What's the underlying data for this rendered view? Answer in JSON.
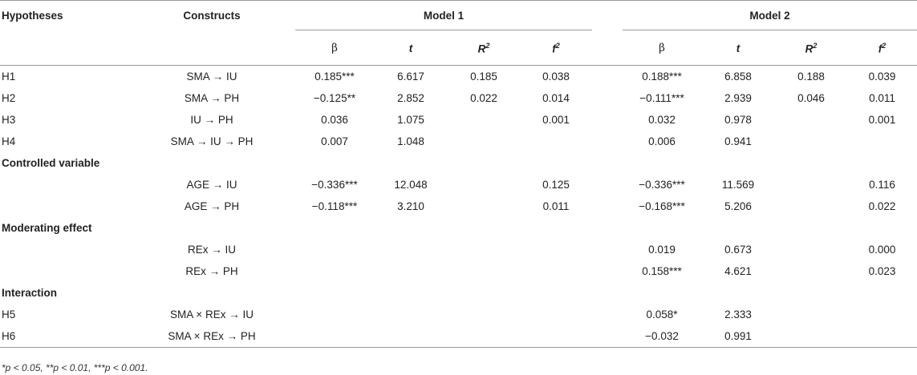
{
  "headers": {
    "hypotheses": "Hypotheses",
    "constructs": "Constructs",
    "model1": "Model 1",
    "model2": "Model 2",
    "beta": "β",
    "t": "t",
    "r2": "R2",
    "f2": "f2"
  },
  "rows": [
    {
      "type": "data",
      "h": "H1",
      "c": "SMA → IU",
      "b1": "0.185***",
      "t1": "6.617",
      "r1": "0.185",
      "f1": "0.038",
      "b2": "0.188***",
      "t2": "6.858",
      "r2": "0.188",
      "f2": "0.039"
    },
    {
      "type": "data",
      "h": "H2",
      "c": "SMA → PH",
      "b1": "−0.125**",
      "t1": "2.852",
      "r1": "0.022",
      "f1": "0.014",
      "b2": "−0.111***",
      "t2": "2.939",
      "r2": "0.046",
      "f2": "0.011"
    },
    {
      "type": "data",
      "h": "H3",
      "c": "IU → PH",
      "b1": "0.036",
      "t1": "1.075",
      "r1": "",
      "f1": "0.001",
      "b2": "0.032",
      "t2": "0.978",
      "r2": "",
      "f2": "0.001"
    },
    {
      "type": "data",
      "h": "H4",
      "c": "SMA → IU → PH",
      "b1": "0.007",
      "t1": "1.048",
      "r1": "",
      "f1": "",
      "b2": "0.006",
      "t2": "0.941",
      "r2": "",
      "f2": ""
    },
    {
      "type": "section",
      "label": "Controlled variable"
    },
    {
      "type": "data",
      "h": "",
      "c": "AGE → IU",
      "b1": "−0.336***",
      "t1": "12.048",
      "r1": "",
      "f1": "0.125",
      "b2": "−0.336***",
      "t2": "11.569",
      "r2": "",
      "f2": "0.116"
    },
    {
      "type": "data",
      "h": "",
      "c": "AGE → PH",
      "b1": "−0.118***",
      "t1": "3.210",
      "r1": "",
      "f1": "0.011",
      "b2": "−0.168***",
      "t2": "5.206",
      "r2": "",
      "f2": "0.022"
    },
    {
      "type": "section",
      "label": "Moderating effect"
    },
    {
      "type": "data",
      "h": "",
      "c": "REx → IU",
      "b1": "",
      "t1": "",
      "r1": "",
      "f1": "",
      "b2": "0.019",
      "t2": "0.673",
      "r2": "",
      "f2": "0.000"
    },
    {
      "type": "data",
      "h": "",
      "c": "REx → PH",
      "b1": "",
      "t1": "",
      "r1": "",
      "f1": "",
      "b2": "0.158***",
      "t2": "4.621",
      "r2": "",
      "f2": "0.023"
    },
    {
      "type": "section",
      "label": "Interaction"
    },
    {
      "type": "data",
      "h": "H5",
      "c": "SMA × REx → IU",
      "b1": "",
      "t1": "",
      "r1": "",
      "f1": "",
      "b2": "0.058*",
      "t2": "2.333",
      "r2": "",
      "f2": ""
    },
    {
      "type": "data",
      "h": "H6",
      "c": "SMA × REx → PH",
      "b1": "",
      "t1": "",
      "r1": "",
      "f1": "",
      "b2": "−0.032",
      "t2": "0.991",
      "r2": "",
      "f2": ""
    }
  ],
  "footnote": "*p < 0.05, **p < 0.01, ***p < 0.001."
}
